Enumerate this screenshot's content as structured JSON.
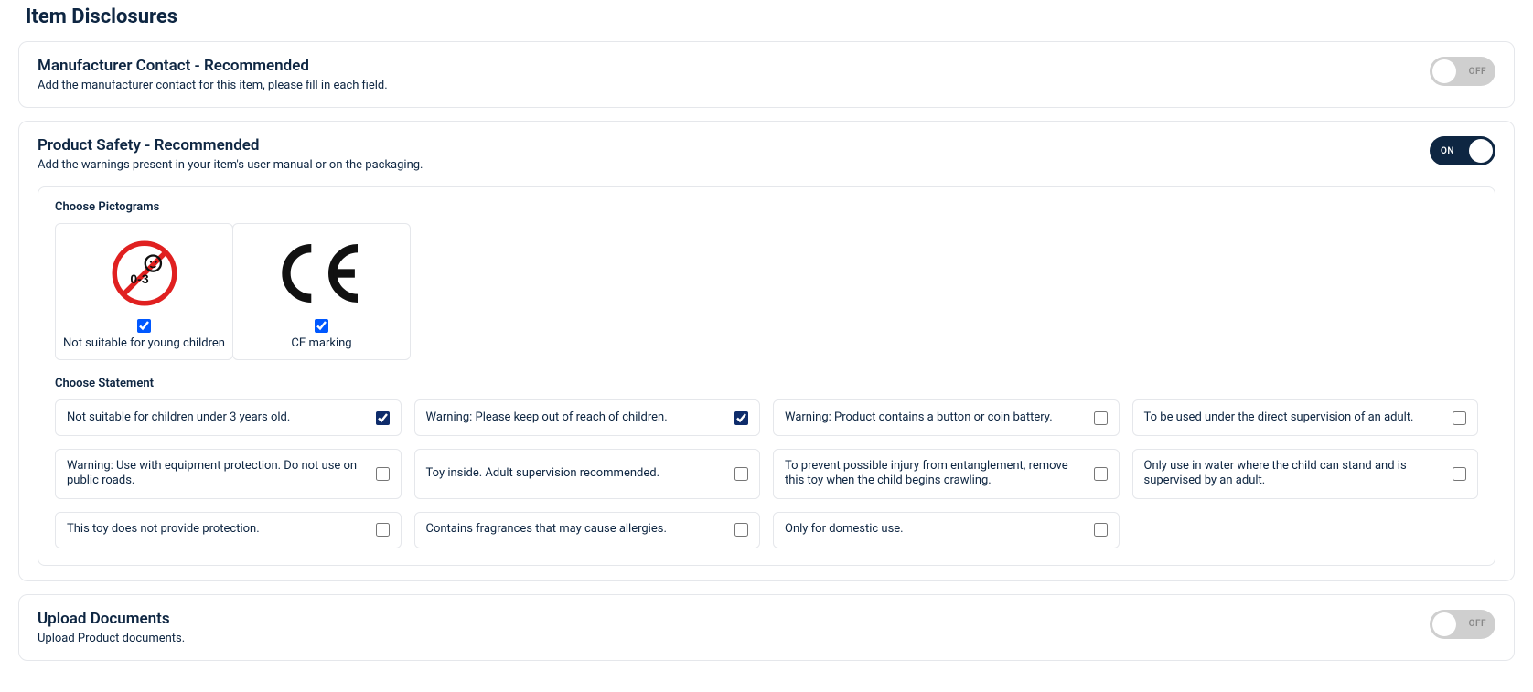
{
  "page": {
    "title": "Item Disclosures"
  },
  "toggle_labels": {
    "on": "ON",
    "off": "OFF"
  },
  "panels": {
    "manufacturer": {
      "title": "Manufacturer Contact - Recommended",
      "subtitle": "Add the manufacturer contact for this item, please fill in each field.",
      "enabled": false
    },
    "safety": {
      "title": "Product Safety - Recommended",
      "subtitle": "Add the warnings present in your item's user manual or on the packaging.",
      "enabled": true,
      "pictograms_title": "Choose Pictograms",
      "pictograms": [
        {
          "id": "no-0-3",
          "label": "Not suitable for young children",
          "checked": true
        },
        {
          "id": "ce-mark",
          "label": "CE marking",
          "checked": true
        }
      ],
      "statements_title": "Choose Statement",
      "statements": [
        {
          "text": "Not suitable for children under 3 years old.",
          "checked": true
        },
        {
          "text": "Warning: Please keep out of reach of children.",
          "checked": true
        },
        {
          "text": "Warning: Product contains a button or coin battery.",
          "checked": false
        },
        {
          "text": "To be used under the direct supervision of an adult.",
          "checked": false
        },
        {
          "text": "Warning: Use with equipment protection. Do not use on public roads.",
          "checked": false
        },
        {
          "text": "Toy inside. Adult supervision recommended.",
          "checked": false
        },
        {
          "text": "To prevent possible injury from entanglement, remove this toy when the child begins crawling.",
          "checked": false
        },
        {
          "text": "Only use in water where the child can stand and is supervised by an adult.",
          "checked": false
        },
        {
          "text": "This toy does not provide protection.",
          "checked": false
        },
        {
          "text": "Contains fragrances that may cause allergies.",
          "checked": false
        },
        {
          "text": "Only for domestic use.",
          "checked": false
        }
      ]
    },
    "documents": {
      "title": "Upload Documents",
      "subtitle": "Upload Product documents.",
      "enabled": false
    }
  },
  "colors": {
    "text": "#0e2642",
    "border": "#e5e7eb",
    "toggle_on_bg": "#0e2642",
    "toggle_off_bg": "#cfcfcf",
    "checkbox_blue": "#0058ff",
    "checkbox_dark": "#0e2c6b",
    "prohibit_red": "#e02020"
  }
}
